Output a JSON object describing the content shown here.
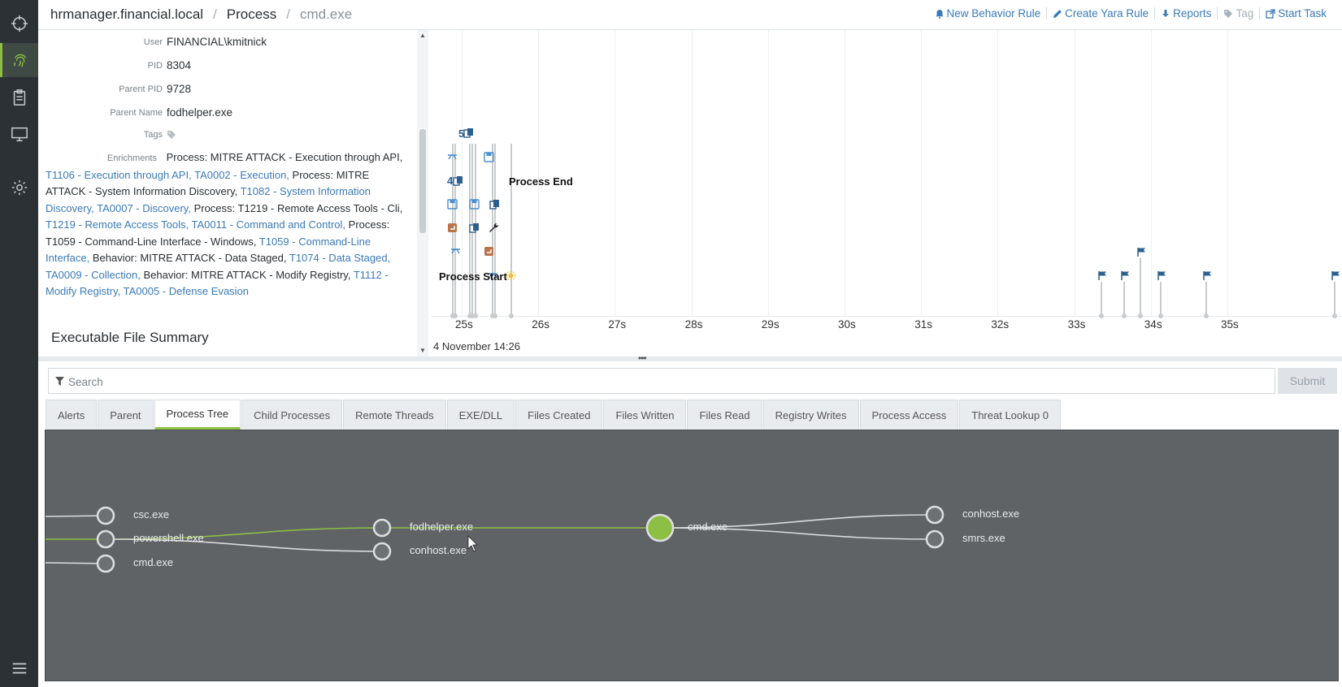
{
  "sidebar": {
    "items": [
      "crosshair-icon",
      "fingerprint-icon",
      "clipboard-icon",
      "monitor-icon",
      "gear-icon",
      "menu-icon"
    ]
  },
  "header": {
    "breadcrumb": [
      "hrmanager.financial.local",
      "Process",
      "cmd.exe"
    ],
    "actions": {
      "new_behavior_rule": "New Behavior Rule",
      "create_yara_rule": "Create Yara Rule",
      "reports": "Reports",
      "tag": "Tag",
      "start_task": "Start Task"
    }
  },
  "details": {
    "user_label": "User",
    "user": "FINANCIAL\\kmitnick",
    "pid_label": "PID",
    "pid": "8304",
    "parent_pid_label": "Parent PID",
    "parent_pid": "9728",
    "parent_name_label": "Parent Name",
    "parent_name": "fodhelper.exe",
    "tags_label": "Tags",
    "enrichments_label": "Enrichments",
    "enrichments": [
      {
        "text": "Process: MITRE ATTACK - Execution through API,",
        "links": [
          "T1106 - Execution through API,",
          "TA0002 - Execution,"
        ]
      },
      {
        "text": "Process: MITRE ATTACK - System Information Discovery,",
        "links": [
          "T1082 - System Information Discovery,",
          "TA0007 - Discovery,"
        ]
      },
      {
        "text": "Process: T1219 - Remote Access Tools - Cli,",
        "links": [
          "T1219 - Remote Access Tools,",
          "TA0011 - Command and Control,"
        ]
      },
      {
        "text": "Process: T1059 - Command-Line Interface - Windows,",
        "links": [
          "T1059 - Command-Line Interface,"
        ]
      },
      {
        "text": "Behavior: MITRE ATTACK - Data Staged,",
        "links": [
          "T1074 - Data Staged,",
          "TA0009 - Collection,"
        ]
      },
      {
        "text": "Behavior: MITRE ATTACK - Modify Registry,",
        "links": [
          "T1112 - Modify Registry,",
          "TA0005 - Defense Evasion"
        ]
      }
    ],
    "section_title": "Executable File Summary"
  },
  "timeline": {
    "ticks": [
      "25s",
      "26s",
      "27s",
      "28s",
      "29s",
      "30s",
      "31s",
      "32s",
      "33s",
      "34s",
      "35s"
    ],
    "date": "4 November 14:26",
    "process_start": "Process Start",
    "process_end": "Process End",
    "counts": [
      "5",
      "4"
    ]
  },
  "search": {
    "placeholder": "Search",
    "submit": "Submit"
  },
  "tabs": [
    "Alerts",
    "Parent",
    "Process Tree",
    "Child Processes",
    "Remote Threads",
    "EXE/DLL",
    "Files Created",
    "Files Written",
    "Files Read",
    "Registry Writes",
    "Process Access",
    "Threat Lookup 0"
  ],
  "active_tab": "Process Tree",
  "tree": {
    "nodes": {
      "csc": "csc.exe",
      "powershell": "powershell.exe",
      "cmd_left": "cmd.exe",
      "fodhelper": "fodhelper.exe",
      "conhost_mid": "conhost.exe",
      "cmd_main": "cmd.exe",
      "conhost_right": "conhost.exe",
      "smrs": "smrs.exe"
    }
  },
  "colors": {
    "accent": "#8dbf44",
    "link": "#3a7ab8",
    "sidebar": "#2c3136",
    "tree_bg": "#5f6365"
  }
}
